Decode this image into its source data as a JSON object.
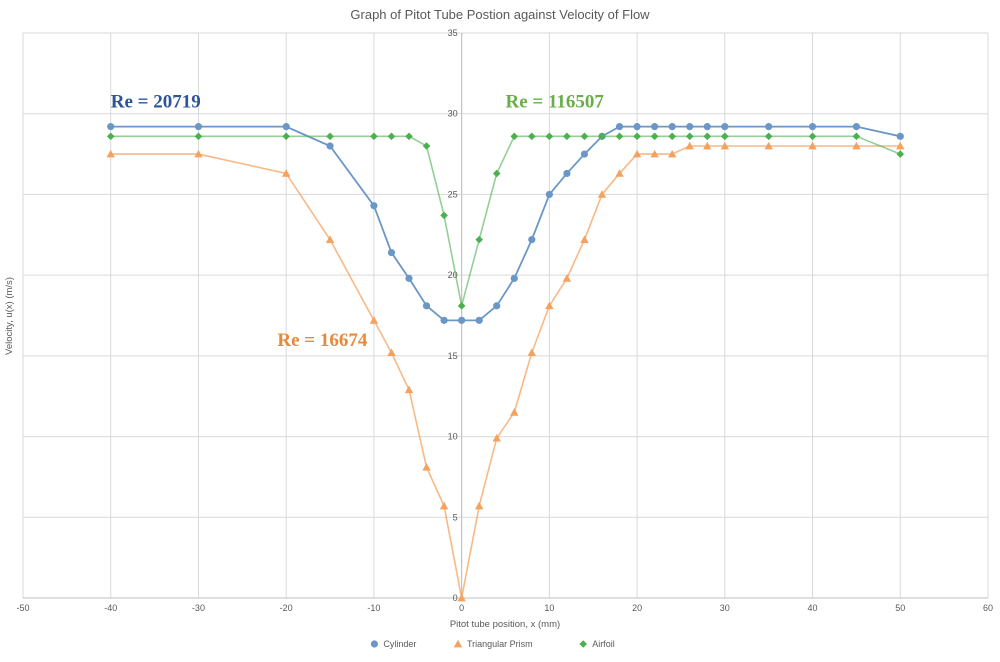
{
  "chart_data": {
    "type": "line",
    "title": "Graph of Pitot Tube Postion against Velocity of Flow",
    "xlabel": "Pitot tube position, x (mm)",
    "ylabel": "Velocity, u(x) (m/s)",
    "xlim": [
      -50,
      60
    ],
    "ylim": [
      0,
      35
    ],
    "xticks": [
      -50,
      -40,
      -30,
      -20,
      -10,
      0,
      10,
      20,
      30,
      40,
      50,
      60
    ],
    "yticks": [
      0,
      5,
      10,
      15,
      20,
      25,
      30,
      35
    ],
    "grid": true,
    "legend_position": "bottom",
    "series": [
      {
        "name": "Cylinder",
        "marker": "circle",
        "color": "#6B97C6",
        "x": [
          -40,
          -30,
          -20,
          -15,
          -10,
          -8,
          -6,
          -4,
          -2,
          0,
          2,
          4,
          6,
          8,
          10,
          12,
          14,
          16,
          18,
          20,
          22,
          24,
          26,
          28,
          30,
          35,
          40,
          45,
          50
        ],
        "y": [
          29.2,
          29.2,
          29.2,
          28.0,
          24.3,
          21.4,
          19.8,
          18.1,
          17.2,
          17.2,
          17.2,
          18.1,
          19.8,
          22.2,
          25.0,
          26.3,
          27.5,
          28.6,
          29.2,
          29.2,
          29.2,
          29.2,
          29.2,
          29.2,
          29.2,
          29.2,
          29.2,
          29.2,
          28.6
        ]
      },
      {
        "name": "Triangular Prism",
        "marker": "triangle",
        "color": "#F4A25E",
        "x": [
          -40,
          -30,
          -20,
          -15,
          -10,
          -8,
          -6,
          -4,
          -2,
          0,
          2,
          4,
          6,
          8,
          10,
          12,
          14,
          16,
          18,
          20,
          22,
          24,
          26,
          28,
          30,
          35,
          40,
          45,
          50
        ],
        "y": [
          27.5,
          27.5,
          26.3,
          22.2,
          17.2,
          15.2,
          12.9,
          8.1,
          5.7,
          0.0,
          5.7,
          9.9,
          11.5,
          15.2,
          18.1,
          19.8,
          22.2,
          25.0,
          26.3,
          27.5,
          27.5,
          27.5,
          28.0,
          28.0,
          28.0,
          28.0,
          28.0,
          28.0,
          28.0
        ]
      },
      {
        "name": "Airfoil",
        "marker": "diamond",
        "color": "#4CAF50",
        "x": [
          -40,
          -30,
          -20,
          -15,
          -10,
          -8,
          -6,
          -4,
          -2,
          0,
          2,
          4,
          6,
          8,
          10,
          12,
          14,
          16,
          18,
          20,
          22,
          24,
          26,
          28,
          30,
          35,
          40,
          45,
          50
        ],
        "y": [
          28.6,
          28.6,
          28.6,
          28.6,
          28.6,
          28.6,
          28.6,
          28.0,
          23.7,
          18.1,
          22.2,
          26.3,
          28.6,
          28.6,
          28.6,
          28.6,
          28.6,
          28.6,
          28.6,
          28.6,
          28.6,
          28.6,
          28.6,
          28.6,
          28.6,
          28.6,
          28.6,
          28.6,
          27.5
        ]
      }
    ],
    "annotations": [
      {
        "text": "Re = 20719",
        "x": -40,
        "y": 30.4,
        "color": "#2E5597"
      },
      {
        "text": "Re = 116507",
        "x": 5,
        "y": 30.4,
        "color": "#6AAE4A"
      },
      {
        "text": "Re = 16674",
        "x": -21,
        "y": 15.6,
        "color": "#E8893A"
      }
    ]
  }
}
